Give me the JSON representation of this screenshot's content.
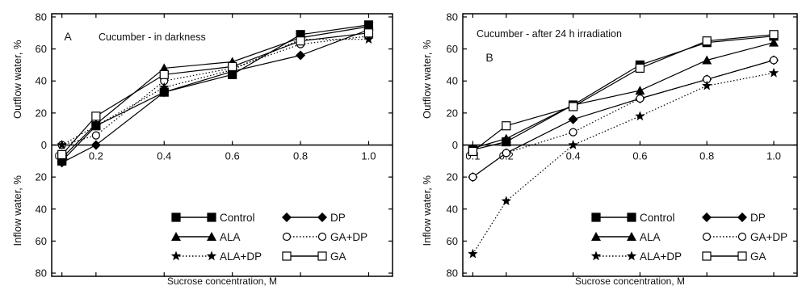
{
  "chart_data": [
    {
      "panel_label": "A",
      "type": "line",
      "title": "Cucumber - in darkness",
      "xlabel": "Sucrose concentration, M",
      "ylabel_top": "Outflow water, %",
      "ylabel_bottom": "Inflow water, %",
      "xlim": [
        0.07,
        1.07
      ],
      "ylim": [
        -82,
        82
      ],
      "x_ticks": [
        0.1,
        0.2,
        0.4,
        0.6,
        0.8,
        1.0
      ],
      "x_tick_labels": [
        "0.1",
        "0.2",
        "0.4",
        "0.6",
        "0.8",
        "1.0"
      ],
      "y_ticks": [
        80,
        60,
        40,
        20,
        0,
        -20,
        -40,
        -60,
        -80
      ],
      "y_tick_labels": [
        "80",
        "60",
        "40",
        "20",
        "0",
        "20",
        "40",
        "60",
        "80"
      ],
      "grid": false,
      "legend_position": "bottom-right",
      "x": [
        0.1,
        0.2,
        0.4,
        0.6,
        0.8,
        1.0
      ],
      "series": [
        {
          "name": "Control",
          "marker": "square-filled",
          "line": "solid",
          "values": [
            -10,
            12,
            33,
            44,
            69,
            75
          ]
        },
        {
          "name": "DP",
          "marker": "diamond-filled",
          "line": "solid",
          "values": [
            -11,
            0,
            33,
            46,
            56,
            72
          ]
        },
        {
          "name": "ALA",
          "marker": "triangle-filled",
          "line": "solid",
          "values": [
            -8,
            13,
            48,
            52,
            67,
            74
          ]
        },
        {
          "name": "GA+DP",
          "marker": "circle-open",
          "line": "dotted",
          "values": [
            0,
            6,
            40,
            48,
            63,
            68
          ]
        },
        {
          "name": "ALA+DP",
          "marker": "star-filled",
          "line": "dotted",
          "values": [
            0,
            12,
            36,
            47,
            66,
            66
          ]
        },
        {
          "name": "GA",
          "marker": "square-open",
          "line": "solid",
          "values": [
            -6,
            18,
            44,
            49,
            65,
            70
          ]
        }
      ]
    },
    {
      "panel_label": "B",
      "type": "line",
      "title": "Cucumber - after 24 h irradiation",
      "xlabel": "Sucrose concentration, M",
      "ylabel_top": "Outflow water, %",
      "ylabel_bottom": "Inflow water, %",
      "xlim": [
        0.07,
        1.07
      ],
      "ylim": [
        -82,
        82
      ],
      "x_ticks": [
        0.1,
        0.2,
        0.4,
        0.6,
        0.8,
        1.0
      ],
      "x_tick_labels": [
        "0.1",
        "0.2",
        "0.4",
        "0.6",
        "0.8",
        "1.0"
      ],
      "y_ticks": [
        80,
        60,
        40,
        20,
        0,
        -20,
        -40,
        -60,
        -80
      ],
      "y_tick_labels": [
        "80",
        "60",
        "40",
        "20",
        "0",
        "20",
        "40",
        "60",
        "80"
      ],
      "grid": false,
      "legend_position": "bottom-right",
      "x": [
        0.1,
        0.2,
        0.4,
        0.6,
        0.8,
        1.0
      ],
      "series": [
        {
          "name": "Control",
          "marker": "square-filled",
          "line": "solid",
          "values": [
            -3,
            2,
            25,
            50,
            64,
            68
          ]
        },
        {
          "name": "DP",
          "marker": "diamond-filled",
          "line": "solid",
          "values": [
            -20,
            -5,
            16,
            29,
            41,
            53
          ]
        },
        {
          "name": "ALA",
          "marker": "triangle-filled",
          "line": "solid",
          "values": [
            -2,
            4,
            25,
            34,
            53,
            64
          ]
        },
        {
          "name": "GA+DP",
          "marker": "circle-open",
          "line": "dotted",
          "values": [
            -20,
            -5,
            8,
            29,
            41,
            53
          ]
        },
        {
          "name": "ALA+DP",
          "marker": "star-filled",
          "line": "dotted",
          "values": [
            -68,
            -35,
            0,
            18,
            37,
            45
          ]
        },
        {
          "name": "GA",
          "marker": "square-open",
          "line": "solid",
          "values": [
            -4,
            12,
            24,
            48,
            65,
            69
          ]
        }
      ]
    }
  ]
}
